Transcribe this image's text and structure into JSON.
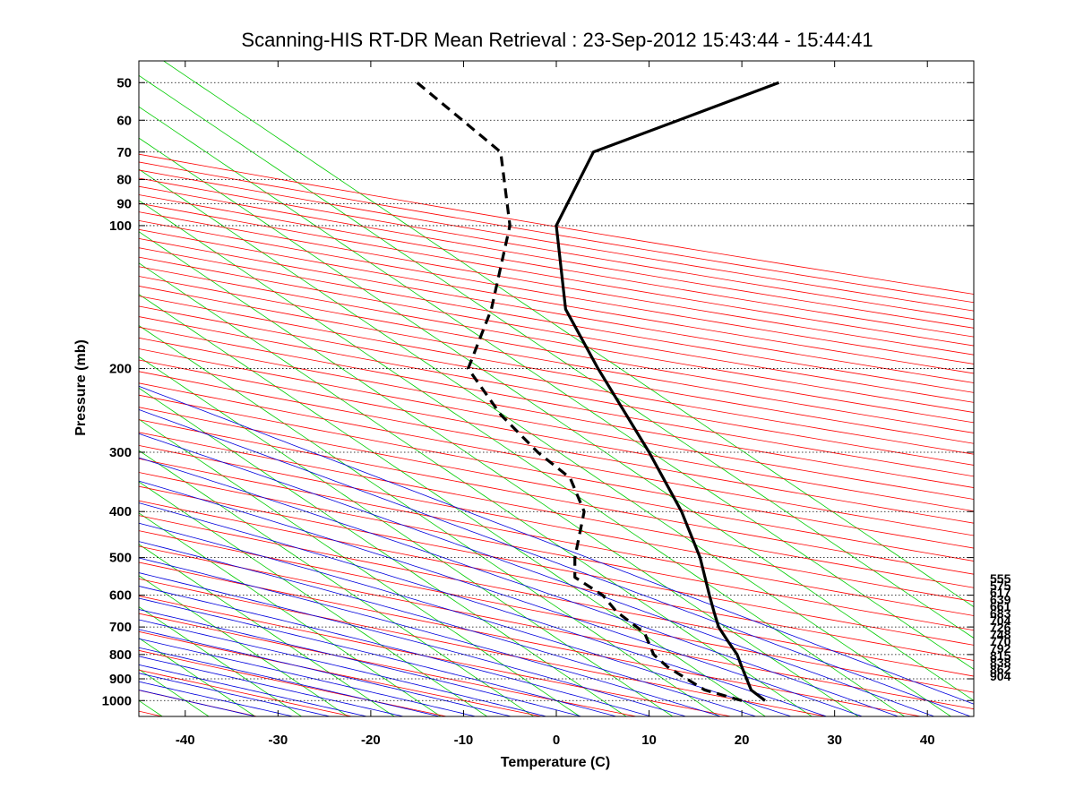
{
  "chart_data": {
    "type": "line",
    "title": "Scanning-HIS RT-DR Mean Retrieval : 23-Sep-2012 15:43:44 - 15:44:41",
    "xlabel": "Temperature (C)",
    "ylabel": "Pressure (mb)",
    "xlim": [
      -45,
      45
    ],
    "ylim": [
      1080,
      45
    ],
    "y_scale": "log",
    "x_ticks": [
      -40,
      -30,
      -20,
      -10,
      0,
      10,
      20,
      30,
      40
    ],
    "x_tick_labels": [
      "-40",
      "-30",
      "-20",
      "-10",
      "0",
      "10",
      "20",
      "30",
      "40"
    ],
    "y_ticks": [
      50,
      60,
      70,
      80,
      90,
      100,
      200,
      300,
      400,
      500,
      600,
      700,
      800,
      900,
      1000
    ],
    "y_tick_labels": [
      "50",
      "60",
      "70",
      "80",
      "90",
      "100",
      "200",
      "300",
      "400",
      "500",
      "600",
      "700",
      "800",
      "900",
      "1000"
    ],
    "grid": "horizontal dotted at pressure ticks",
    "skew": "skew-T log-P diagram",
    "colors": {
      "isotherms": "#00cc00",
      "dry_adiabats": "#ff0000",
      "moist_adiabats": "#0000dd",
      "temperature": "#000000",
      "dewpoint": "#000000"
    },
    "series": [
      {
        "style": "solid",
        "x": [
          22.5,
          21.0,
          20.0,
          19.5,
          18.5,
          17.5,
          17.0,
          16.5,
          15.5,
          13.5,
          10.0,
          4.5,
          1.0,
          0.0,
          4.0,
          24.0
        ],
        "y": [
          1000,
          950,
          850,
          800,
          750,
          700,
          650,
          600,
          500,
          400,
          300,
          200,
          150,
          100,
          70,
          50
        ]
      },
      {
        "style": "dashed",
        "x": [
          20.0,
          16.0,
          12.0,
          10.5,
          9.5,
          6.5,
          5.0,
          2.0,
          2.0,
          3.0,
          1.5,
          -2.0,
          -6.0,
          -9.5,
          -7.0,
          -5.0,
          -6.0,
          -15.0
        ],
        "y": [
          1000,
          950,
          850,
          800,
          720,
          650,
          600,
          550,
          500,
          400,
          340,
          300,
          250,
          200,
          150,
          100,
          70,
          50
        ]
      }
    ],
    "side_labels": [
      "555",
      "575",
      "617",
      "639",
      "661",
      "683",
      "704",
      "726",
      "748",
      "770",
      "792",
      "815",
      "838",
      "862",
      "904"
    ]
  }
}
